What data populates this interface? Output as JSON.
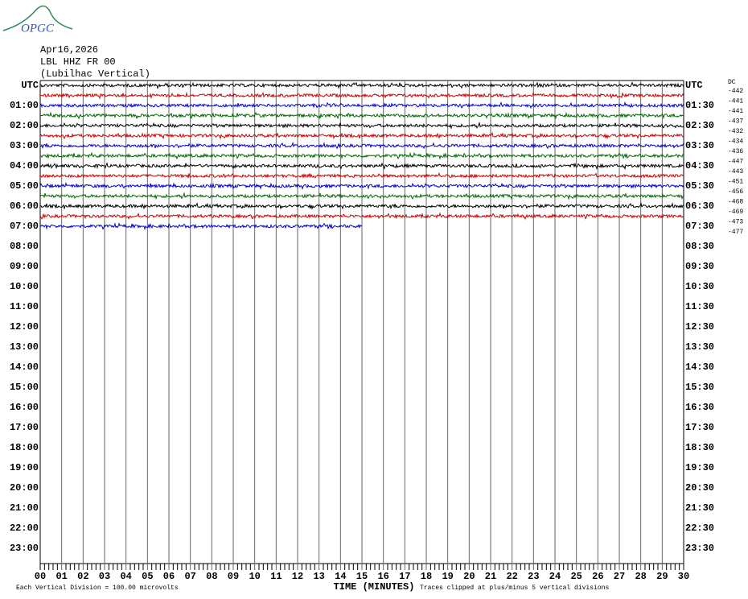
{
  "chart_data": {
    "type": "helicorder",
    "logo": "OPGC",
    "date": "Apr16,2026",
    "station": "LBL HHZ FR 00",
    "location": "(Lubilhac Vertical)",
    "left_labels": [
      "UTC",
      "01:00",
      "02:00",
      "03:00",
      "04:00",
      "05:00",
      "06:00",
      "07:00",
      "08:00",
      "09:00",
      "10:00",
      "11:00",
      "12:00",
      "13:00",
      "14:00",
      "15:00",
      "16:00",
      "17:00",
      "18:00",
      "19:00",
      "20:00",
      "21:00",
      "22:00",
      "23:00"
    ],
    "right_labels": [
      "UTC",
      "01:30",
      "02:30",
      "03:30",
      "04:30",
      "05:30",
      "06:30",
      "07:30",
      "08:30",
      "09:30",
      "10:30",
      "11:30",
      "12:30",
      "13:30",
      "14:30",
      "15:30",
      "16:30",
      "17:30",
      "18:30",
      "19:30",
      "20:30",
      "21:30",
      "22:30",
      "23:30"
    ],
    "dc_label": "DC",
    "xlim": [
      0,
      30
    ],
    "xticks": [
      {
        "value": 0,
        "label": "00"
      },
      {
        "value": 1,
        "label": "01"
      },
      {
        "value": 2,
        "label": "02"
      },
      {
        "value": 3,
        "label": "03"
      },
      {
        "value": 4,
        "label": "04"
      },
      {
        "value": 5,
        "label": "05"
      },
      {
        "value": 6,
        "label": "06"
      },
      {
        "value": 7,
        "label": "07"
      },
      {
        "value": 8,
        "label": "08"
      },
      {
        "value": 9,
        "label": "09"
      },
      10,
      11,
      12,
      13,
      14,
      15,
      16,
      17,
      18,
      19,
      20,
      21,
      22,
      23,
      24,
      25,
      26,
      27,
      28,
      29,
      30
    ],
    "xlabel": "TIME (MINUTES)",
    "footer_left": "Each Vertical Division =  100.00 microvolts",
    "footer_right": "Traces clipped at plus/minus 5 vertical divisions",
    "traces": [
      {
        "color": "#000000",
        "end": 30,
        "dc": -442
      },
      {
        "color": "#cc0000",
        "end": 30,
        "dc": -441
      },
      {
        "color": "#0000cc",
        "end": 30,
        "dc": -441
      },
      {
        "color": "#006600",
        "end": 30,
        "dc": -437
      },
      {
        "color": "#000000",
        "end": 30,
        "dc": -432
      },
      {
        "color": "#cc0000",
        "end": 30,
        "dc": -434
      },
      {
        "color": "#0000cc",
        "end": 30,
        "dc": -436
      },
      {
        "color": "#006600",
        "end": 30,
        "dc": -447
      },
      {
        "color": "#000000",
        "end": 30,
        "dc": -443
      },
      {
        "color": "#cc0000",
        "end": 30,
        "dc": -451
      },
      {
        "color": "#0000cc",
        "end": 30,
        "dc": -456
      },
      {
        "color": "#006600",
        "end": 30,
        "dc": -468
      },
      {
        "color": "#000000",
        "end": 30,
        "dc": -469
      },
      {
        "color": "#cc0000",
        "end": 30,
        "dc": -473
      },
      {
        "color": "#0000cc",
        "end": 15,
        "dc": -477
      }
    ]
  }
}
